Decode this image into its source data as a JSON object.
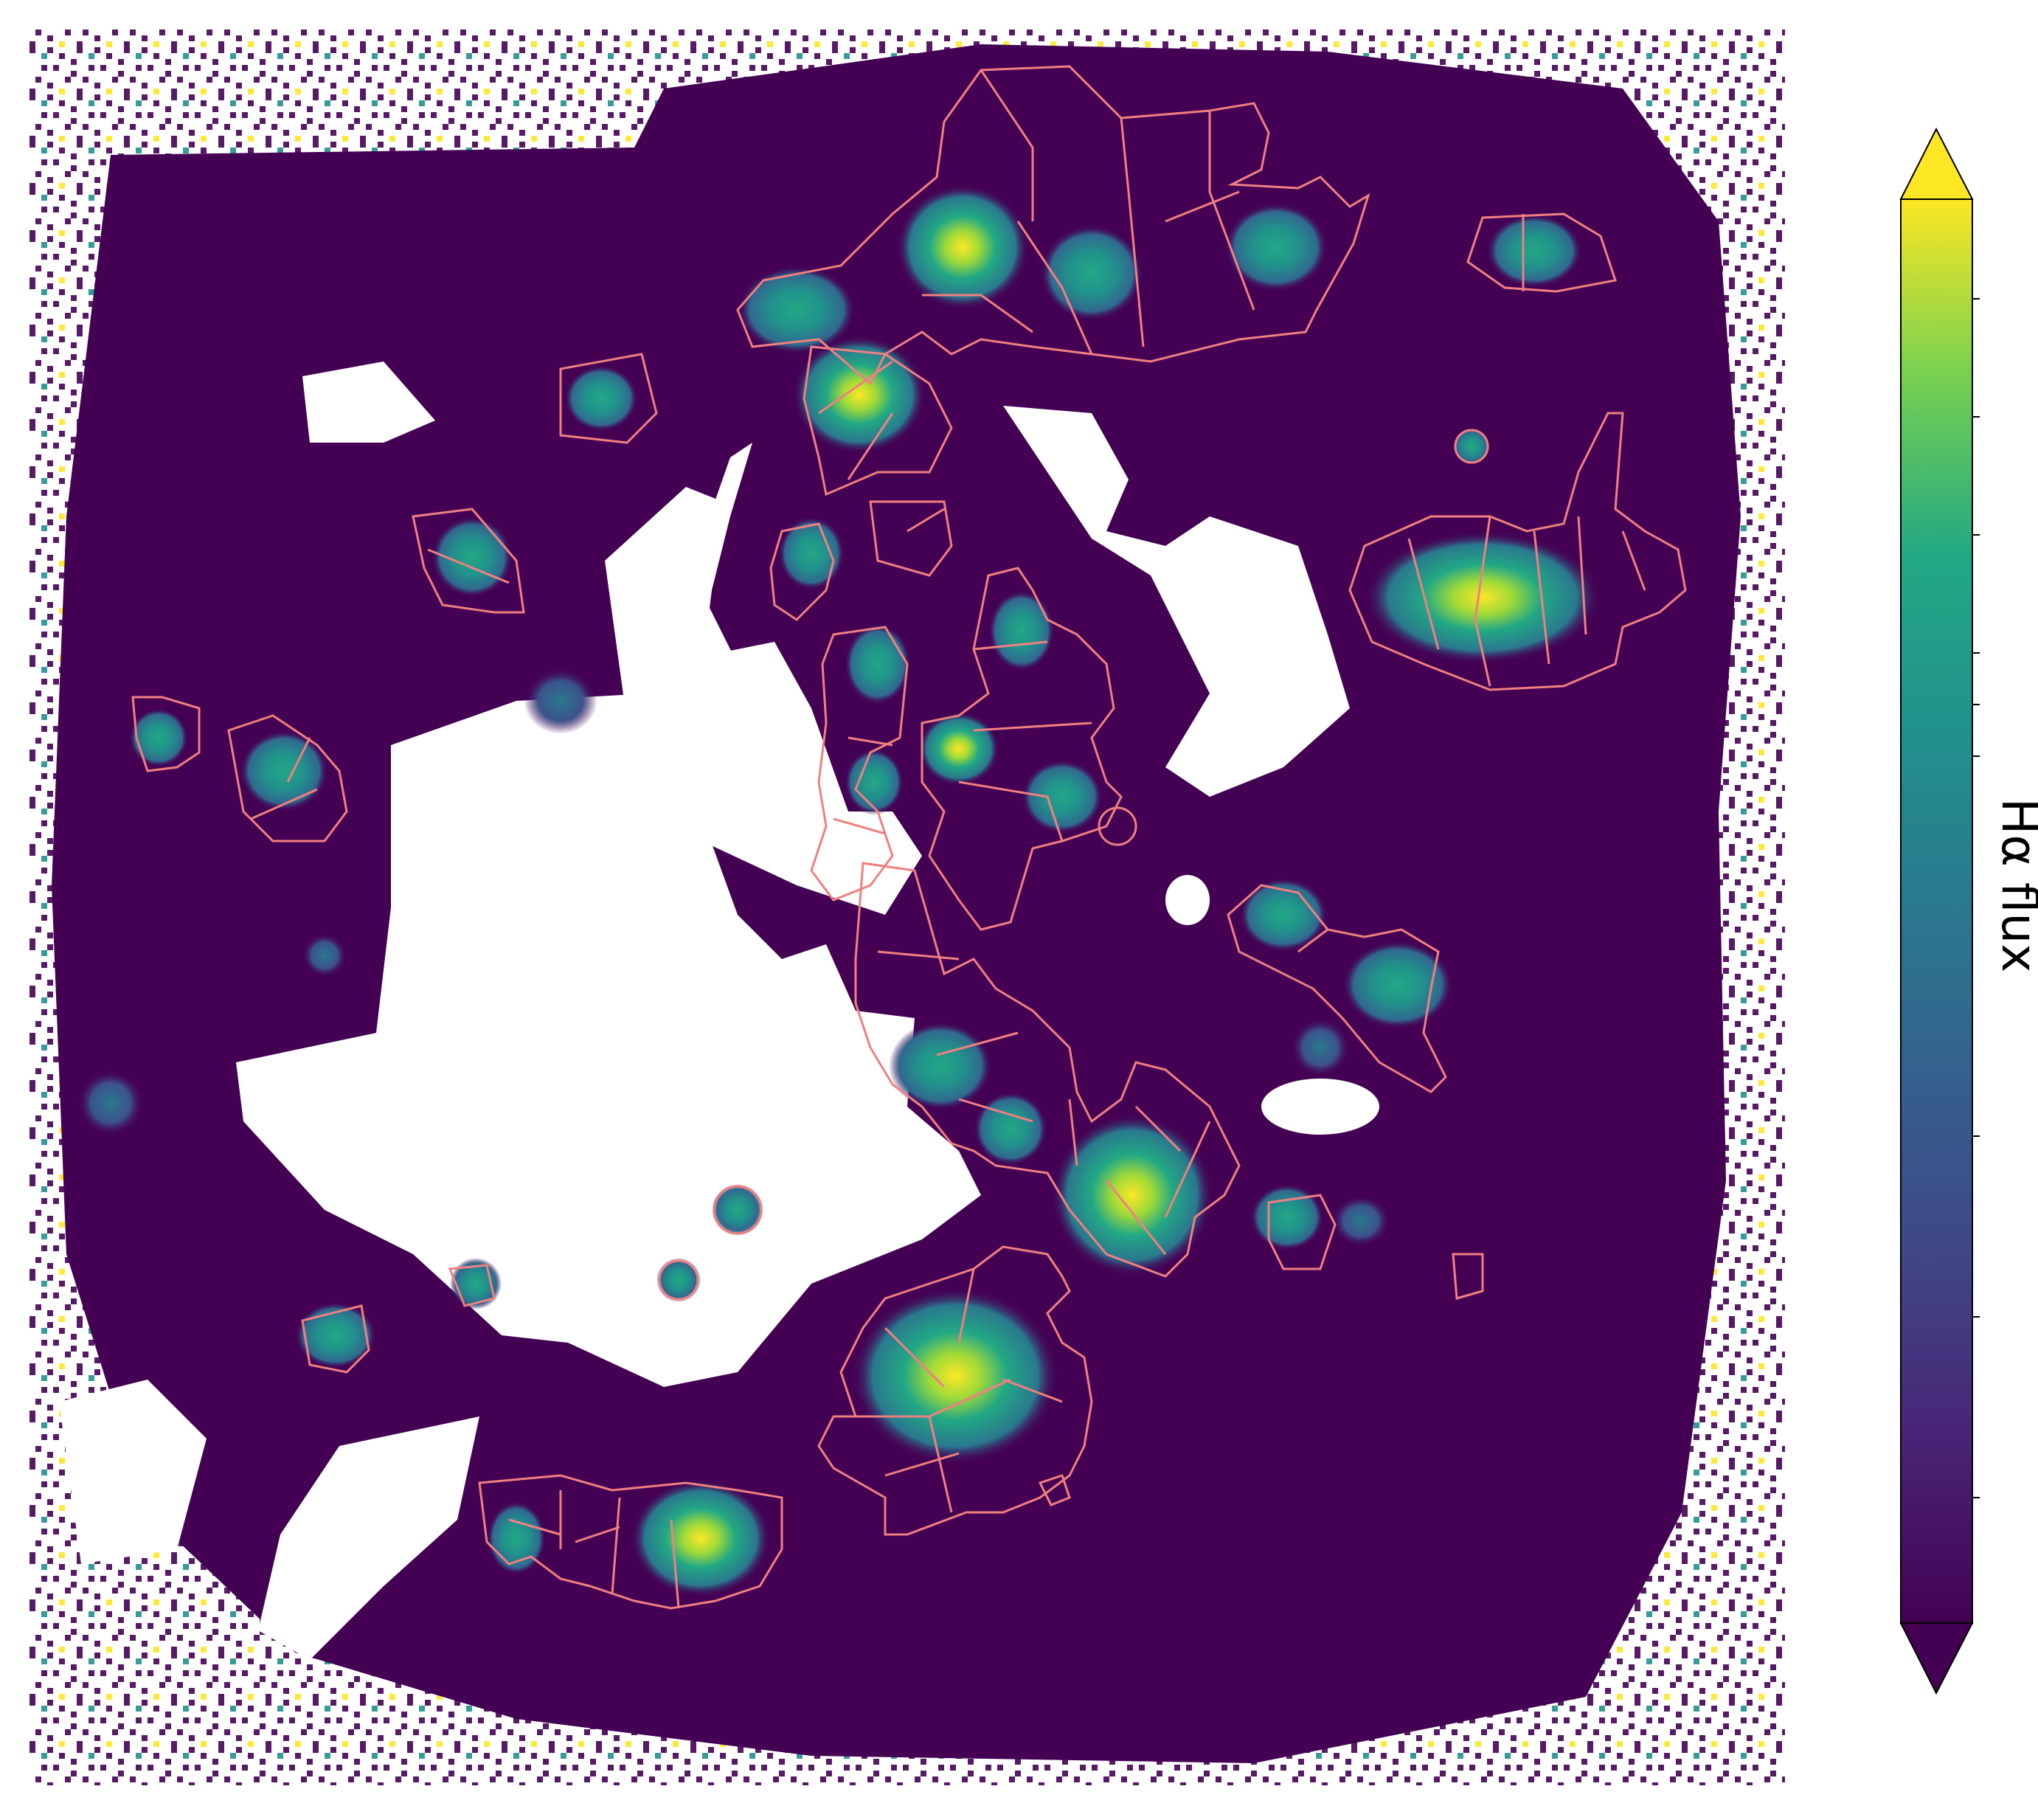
{
  "chart_data": {
    "type": "heatmap",
    "title": "",
    "xlabel": "",
    "ylabel": "",
    "colormap": "viridis",
    "colorbar": {
      "label": "Hα flux",
      "extend": "both",
      "tick_labels": [],
      "location": "right"
    },
    "contour_color": "#f08080",
    "masked_color": "#ffffff",
    "colors": {
      "low": "#440154",
      "mid": "#21918c",
      "high": "#fde725"
    },
    "grid": false
  }
}
